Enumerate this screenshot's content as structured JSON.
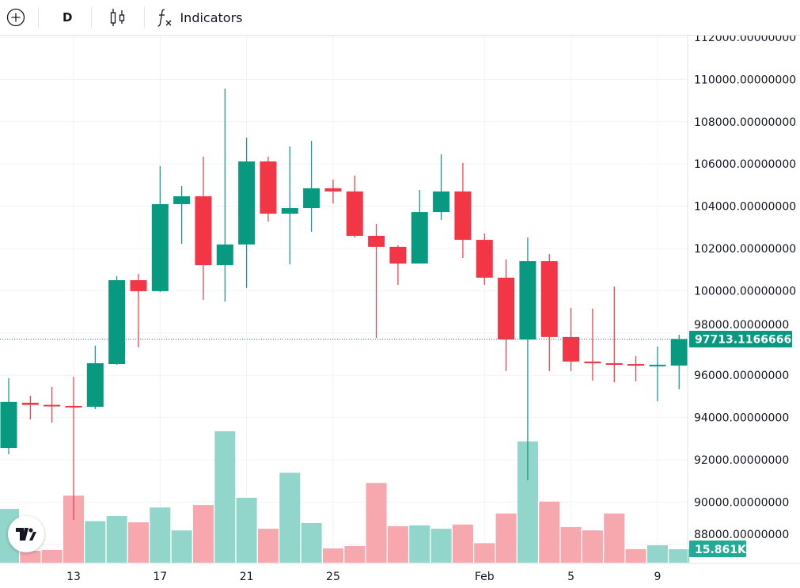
{
  "toolbar": {
    "add_symbol_icon": "plus-circle-icon",
    "interval": "D",
    "chart_type_icon": "candlestick-icon",
    "indicators_icon": "fx-icon",
    "indicators_label": "Indicators"
  },
  "colors": {
    "up": "#089981",
    "down": "#F23645",
    "up_volume": "#92D5CA",
    "down_volume": "#F7A7AE",
    "grid": "#F0F3FA"
  },
  "price_axis": {
    "labels": [
      "112000.00000000",
      "110000.00000000",
      "108000.00000000",
      "106000.00000000",
      "104000.00000000",
      "102000.00000000",
      "100000.00000000",
      "98000.00000000",
      "96000.00000000",
      "94000.00000000",
      "92000.00000000",
      "90000.00000000",
      "88000.00000000"
    ],
    "last_price_label": "97713.11666667",
    "last_volume_label": "15.861K"
  },
  "time_axis": {
    "labels": [
      "13",
      "17",
      "21",
      "25",
      "Feb",
      "5",
      "9"
    ]
  },
  "chart_data": {
    "type": "candlestick",
    "ylim": [
      87200,
      112000
    ],
    "dates": [
      "Jan 10",
      "Jan 11",
      "Jan 12",
      "Jan 13",
      "Jan 14",
      "Jan 15",
      "Jan 16",
      "Jan 17",
      "Jan 18",
      "Jan 19",
      "Jan 20",
      "Jan 21",
      "Jan 22",
      "Jan 23",
      "Jan 24",
      "Jan 25",
      "Jan 26",
      "Jan 27",
      "Jan 28",
      "Jan 29",
      "Jan 30",
      "Jan 31",
      "Feb 1",
      "Feb 2",
      "Feb 3",
      "Feb 4",
      "Feb 5",
      "Feb 6",
      "Feb 7",
      "Feb 8",
      "Feb 9",
      "Feb 10"
    ],
    "ohlc": [
      [
        92560,
        95860,
        92260,
        94740
      ],
      [
        94700,
        95030,
        93910,
        94600
      ],
      [
        94600,
        95450,
        93760,
        94550
      ],
      [
        94550,
        95930,
        89150,
        94500
      ],
      [
        94510,
        97400,
        94400,
        96570
      ],
      [
        96530,
        100690,
        96500,
        100500
      ],
      [
        100500,
        100800,
        97320,
        99980
      ],
      [
        99980,
        105900,
        99940,
        104100
      ],
      [
        104100,
        104960,
        102220,
        104470
      ],
      [
        104470,
        106350,
        99570,
        101210
      ],
      [
        101210,
        109570,
        99490,
        102190
      ],
      [
        102190,
        107240,
        100130,
        106120
      ],
      [
        106120,
        106350,
        103270,
        103650
      ],
      [
        103650,
        106830,
        101250,
        103910
      ],
      [
        103910,
        107090,
        102790,
        104850
      ],
      [
        104850,
        105260,
        104130,
        104700
      ],
      [
        104700,
        105450,
        102520,
        102600
      ],
      [
        102600,
        103160,
        97770,
        102080
      ],
      [
        102080,
        102150,
        100280,
        101290
      ],
      [
        101290,
        104770,
        101290,
        103720
      ],
      [
        103720,
        106460,
        103350,
        104700
      ],
      [
        104700,
        106050,
        101550,
        102410
      ],
      [
        102410,
        102710,
        100280,
        100620
      ],
      [
        100620,
        101480,
        96200,
        97690
      ],
      [
        97690,
        102520,
        91030,
        101400
      ],
      [
        101400,
        101740,
        96200,
        97810
      ],
      [
        97810,
        99190,
        96200,
        96650
      ],
      [
        96650,
        99150,
        95750,
        96570
      ],
      [
        96570,
        100200,
        95670,
        96530
      ],
      [
        96530,
        96910,
        95710,
        96500
      ],
      [
        96460,
        97360,
        94770,
        96500
      ],
      [
        96460,
        97920,
        95340,
        97713.11666667
      ]
    ],
    "volume_k": [
      63.4,
      14,
      15,
      79,
      49,
      55,
      47.6,
      65,
      38,
      68,
      155,
      76.5,
      40,
      106,
      46.7,
      16.8,
      19.6,
      94,
      43,
      44,
      40,
      45,
      23,
      58,
      143,
      72,
      42,
      38,
      58,
      16,
      20.5,
      15.861
    ]
  },
  "watermark": "TV"
}
